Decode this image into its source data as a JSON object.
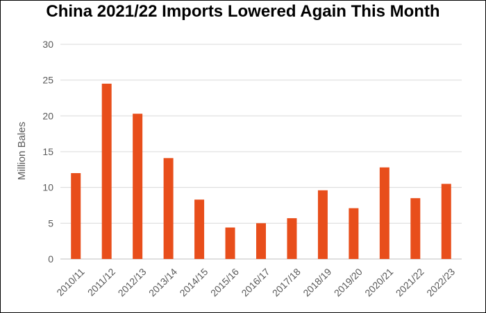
{
  "chart_data": {
    "type": "bar",
    "title": "China 2021/22 Imports Lowered Again This Month",
    "xlabel": "",
    "ylabel": "Million Bales",
    "categories": [
      "2010/11",
      "2011/12",
      "2012/13",
      "2013/14",
      "2014/15",
      "2015/16",
      "2016/17",
      "2017/18",
      "2018/19",
      "2019/20",
      "2020/21",
      "2021/22",
      "2022/23"
    ],
    "values": [
      12.0,
      24.5,
      20.3,
      14.1,
      8.3,
      4.4,
      5.0,
      5.7,
      9.6,
      7.1,
      12.8,
      8.5,
      10.5
    ],
    "ylim": [
      0,
      30
    ],
    "yticks": [
      0,
      5,
      10,
      15,
      20,
      25,
      30
    ],
    "grid": true,
    "bar_color": "#E84E1B",
    "grid_color": "#D9D9D9",
    "axis_color": "#BFBFBF"
  }
}
